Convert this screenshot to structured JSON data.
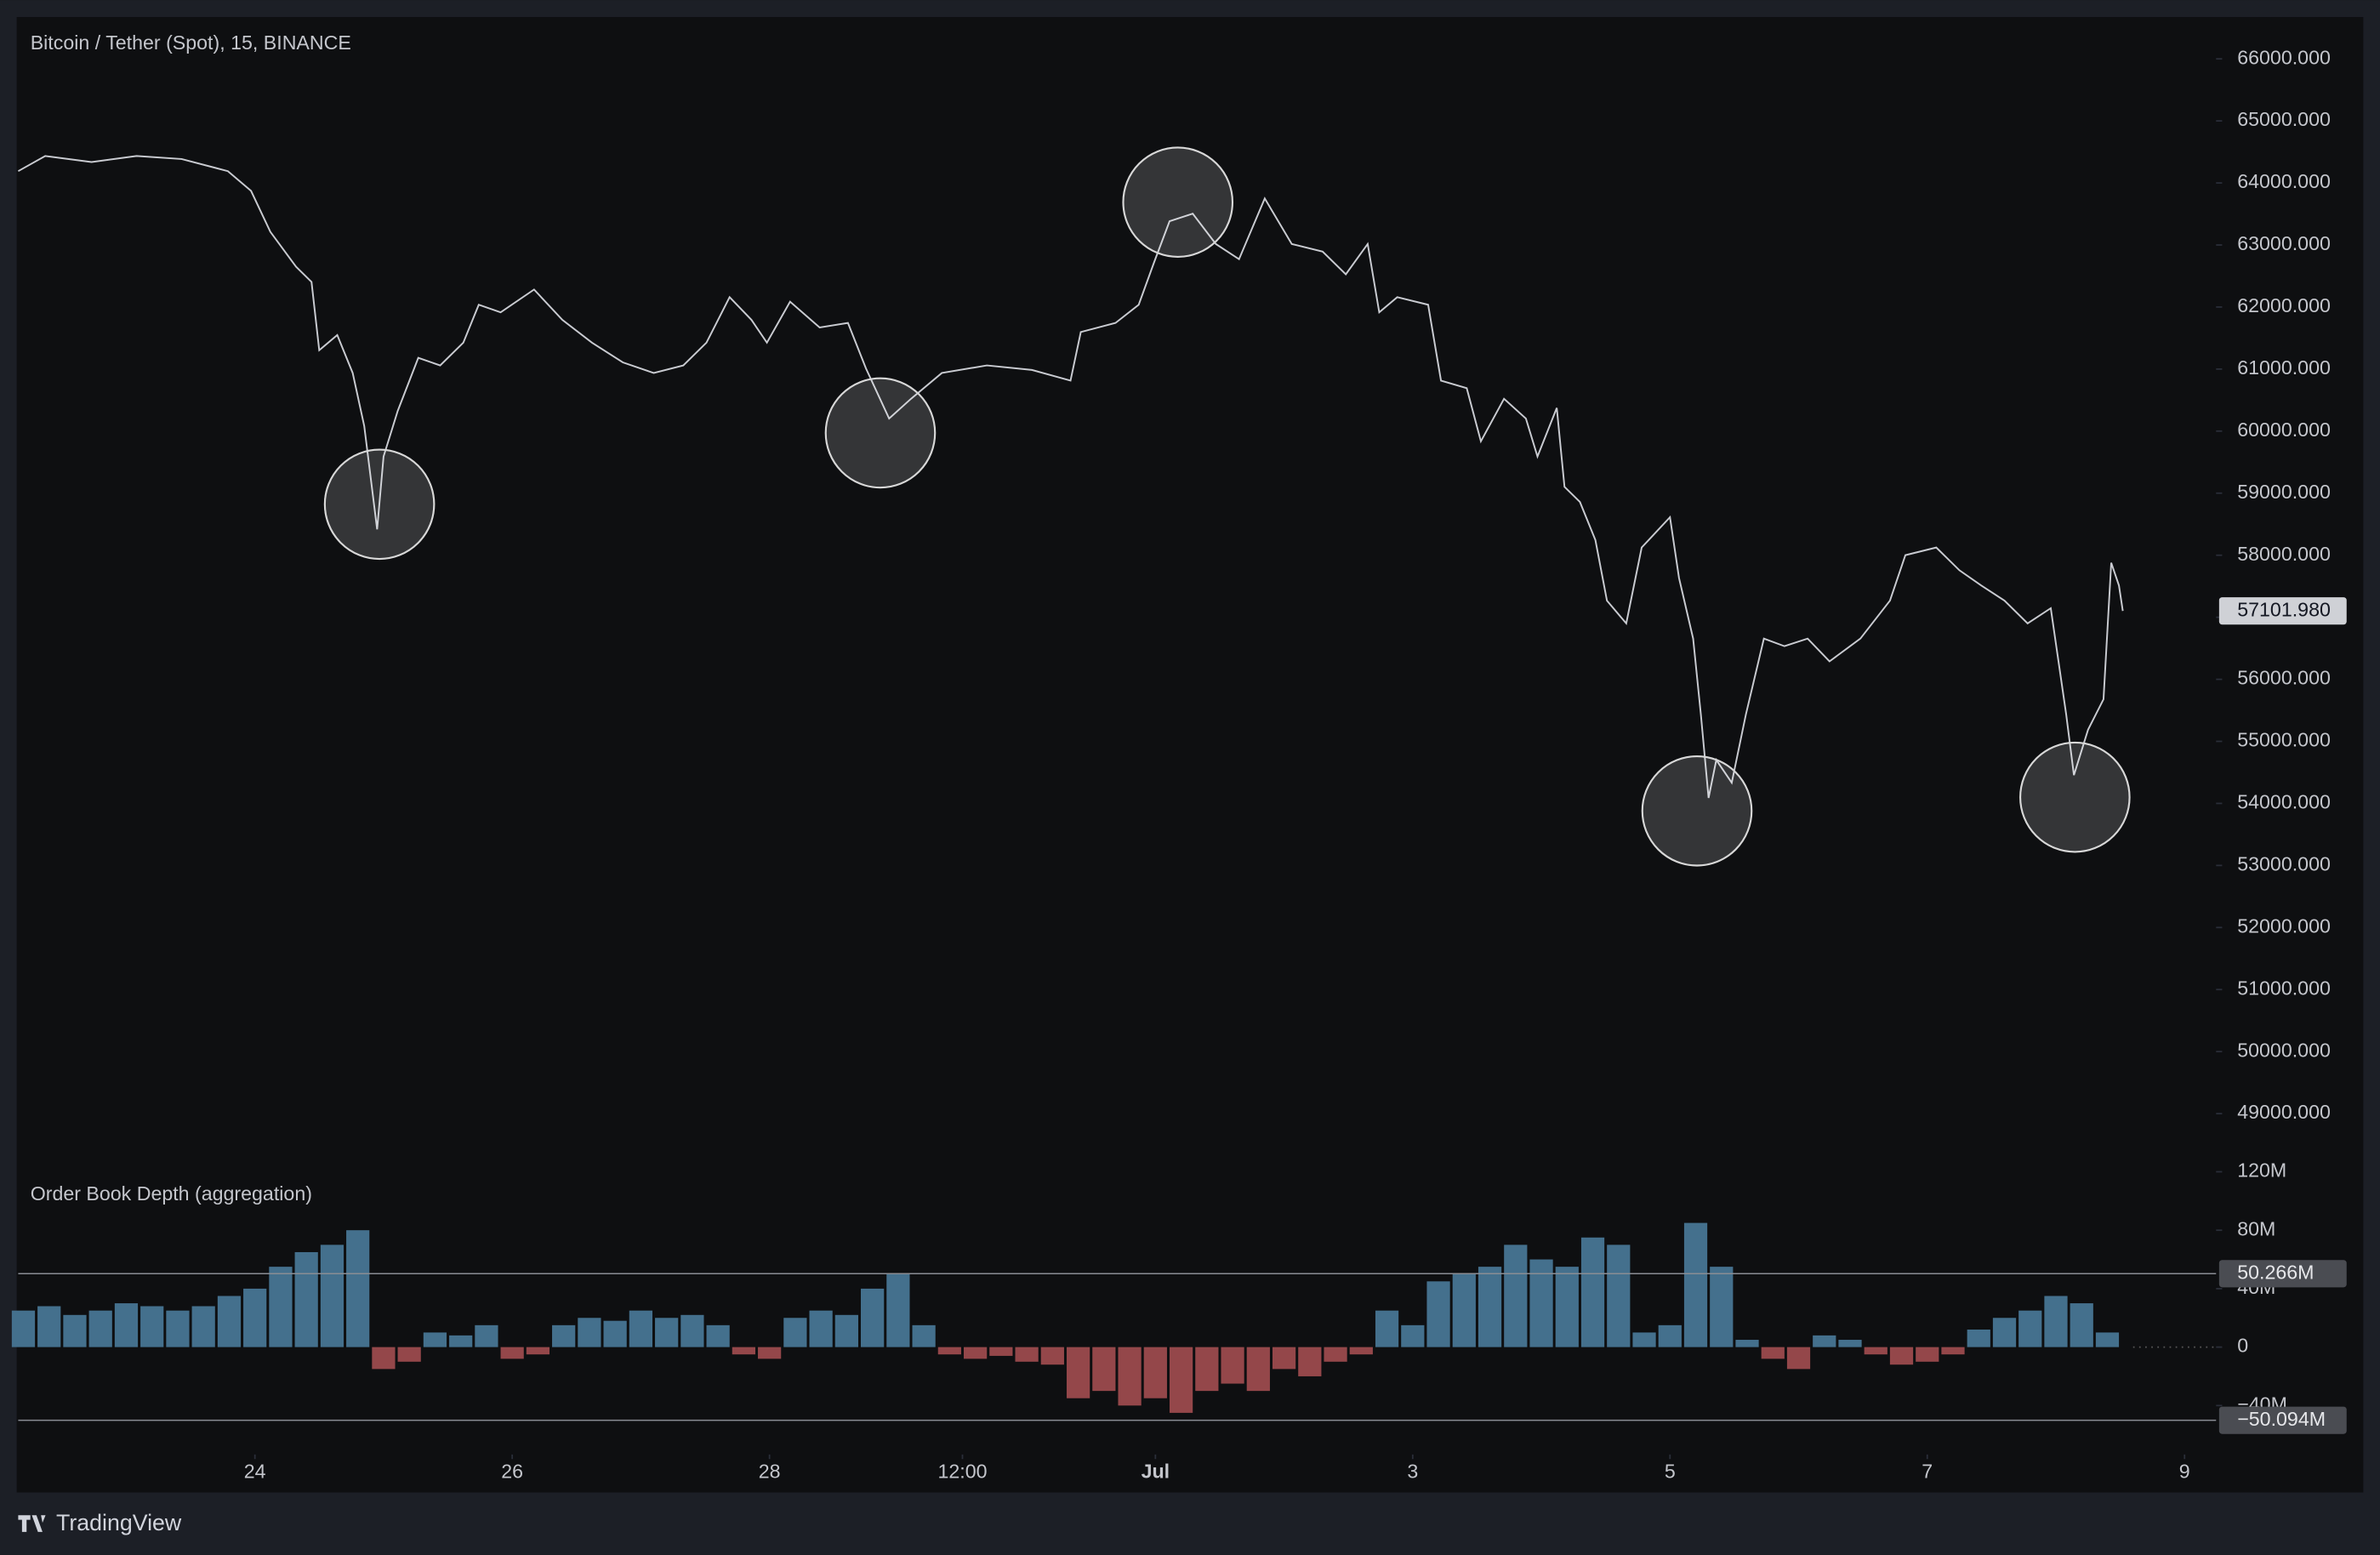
{
  "chart_data": [
    {
      "type": "line",
      "title": "Bitcoin / Tether (Spot), 15, BINANCE",
      "color": "#c9cbd1",
      "xlim": [
        22.16,
        39.245
      ],
      "xticks": [
        {
          "value": 24,
          "label": "24"
        },
        {
          "value": 26,
          "label": "26"
        },
        {
          "value": 28,
          "label": "28"
        },
        {
          "value": 29.5,
          "label": "12:00"
        },
        {
          "value": 31,
          "label": "Jul"
        },
        {
          "value": 33,
          "label": "3"
        },
        {
          "value": 35,
          "label": "5"
        },
        {
          "value": 37,
          "label": "7"
        },
        {
          "value": 39,
          "label": "9"
        }
      ],
      "ylim": [
        48350,
        66650
      ],
      "yticks": [
        {
          "value": 49000,
          "label": "49000.000"
        },
        {
          "value": 50000,
          "label": "50000.000"
        },
        {
          "value": 51000,
          "label": "51000.000"
        },
        {
          "value": 52000,
          "label": "52000.000"
        },
        {
          "value": 53000,
          "label": "53000.000"
        },
        {
          "value": 54000,
          "label": "54000.000"
        },
        {
          "value": 55000,
          "label": "55000.000"
        },
        {
          "value": 56000,
          "label": "56000.000"
        },
        {
          "value": 57000,
          "label": "57000.000"
        },
        {
          "value": 58000,
          "label": "58000.000"
        },
        {
          "value": 59000,
          "label": "59000.000"
        },
        {
          "value": 60000,
          "label": "60000.000"
        },
        {
          "value": 61000,
          "label": "61000.000"
        },
        {
          "value": 62000,
          "label": "62000.000"
        },
        {
          "value": 63000,
          "label": "63000.000"
        },
        {
          "value": 64000,
          "label": "64000.000"
        },
        {
          "value": 65000,
          "label": "65000.000"
        },
        {
          "value": 66000,
          "label": "66000.000"
        }
      ],
      "x": [
        22.16,
        22.37,
        22.73,
        23.08,
        23.43,
        23.79,
        23.97,
        24.12,
        24.32,
        24.44,
        24.5,
        24.64,
        24.76,
        24.85,
        24.95,
        25.0,
        25.11,
        25.27,
        25.44,
        25.62,
        25.74,
        25.91,
        26.17,
        26.39,
        26.62,
        26.86,
        27.1,
        27.33,
        27.51,
        27.69,
        27.86,
        27.98,
        28.16,
        28.39,
        28.61,
        28.75,
        28.93,
        29.1,
        29.34,
        29.69,
        30.04,
        30.34,
        30.42,
        30.69,
        30.87,
        30.99,
        31.11,
        31.29,
        31.47,
        31.65,
        31.85,
        32.06,
        32.3,
        32.48,
        32.65,
        32.74,
        32.88,
        33.12,
        33.22,
        33.42,
        33.53,
        33.71,
        33.88,
        33.97,
        34.12,
        34.18,
        34.3,
        34.42,
        34.51,
        34.66,
        34.78,
        34.89,
        35.0,
        35.07,
        35.18,
        35.24,
        35.3,
        35.36,
        35.48,
        35.59,
        35.73,
        35.89,
        36.07,
        36.24,
        36.48,
        36.71,
        36.83,
        37.07,
        37.25,
        37.42,
        37.6,
        37.78,
        37.96,
        38.08,
        38.14,
        38.25,
        38.37,
        38.43,
        38.49,
        38.52
      ],
      "values": [
        64190,
        64435,
        64337,
        64435,
        64386,
        64190,
        63872,
        63212,
        62649,
        62404,
        61304,
        61548,
        60937,
        60080,
        58417,
        59591,
        60325,
        61181,
        61059,
        61426,
        62037,
        61915,
        62282,
        61793,
        61426,
        61108,
        60937,
        61059,
        61426,
        62159,
        61793,
        61426,
        62086,
        61670,
        61744,
        61010,
        60203,
        60521,
        60937,
        61059,
        60986,
        60814,
        61597,
        61744,
        62037,
        62722,
        63383,
        63505,
        63016,
        62771,
        63750,
        63016,
        62893,
        62527,
        63016,
        61915,
        62159,
        62037,
        60814,
        60692,
        59836,
        60521,
        60203,
        59591,
        60374,
        59102,
        58858,
        58246,
        57268,
        56901,
        58124,
        58368,
        58613,
        57635,
        56656,
        55433,
        54088,
        54700,
        54333,
        55433,
        56656,
        56534,
        56656,
        56289,
        56656,
        57268,
        58001,
        58124,
        57757,
        57512,
        57268,
        56901,
        57146,
        55433,
        54455,
        55188,
        55678,
        57879,
        57512,
        57101.98
      ],
      "last_value_label": "57101.980"
    },
    {
      "type": "bar",
      "title": "Order Book Depth (aggregation)",
      "positive_color": "#44708d",
      "negative_color": "#94474a",
      "ylim": [
        -60,
        127
      ],
      "yticks": [
        {
          "value": -40,
          "label": "−40M"
        },
        0,
        {
          "value": 40,
          "label": "40M"
        },
        {
          "value": 80,
          "label": "80M"
        },
        {
          "value": 120,
          "label": "120M"
        }
      ],
      "levels": [
        {
          "value": 50.266,
          "label": "50.266M"
        },
        {
          "value": -50.094,
          "label": "−50.094M"
        }
      ],
      "x": [
        22.2,
        22.4,
        22.6,
        22.8,
        23.0,
        23.2,
        23.4,
        23.6,
        23.8,
        24.0,
        24.2,
        24.4,
        24.6,
        24.8,
        25.0,
        25.2,
        25.4,
        25.6,
        25.8,
        26.0,
        26.2,
        26.4,
        26.6,
        26.8,
        27.0,
        27.2,
        27.4,
        27.6,
        27.8,
        28.0,
        28.2,
        28.4,
        28.6,
        28.8,
        29.0,
        29.2,
        29.4,
        29.6,
        29.8,
        30.0,
        30.2,
        30.4,
        30.6,
        30.8,
        31.0,
        31.2,
        31.4,
        31.6,
        31.8,
        32.0,
        32.2,
        32.4,
        32.6,
        32.8,
        33.0,
        33.2,
        33.4,
        33.6,
        33.8,
        34.0,
        34.2,
        34.4,
        34.6,
        34.8,
        35.0,
        35.2,
        35.4,
        35.6,
        35.8,
        36.0,
        36.2,
        36.4,
        36.6,
        36.8,
        37.0,
        37.2,
        37.4,
        37.6,
        37.8,
        38.0,
        38.2,
        38.4
      ],
      "values": [
        25,
        28,
        22,
        25,
        30,
        28,
        25,
        28,
        35,
        40,
        55,
        65,
        70,
        80,
        -15,
        -10,
        10,
        8,
        15,
        -8,
        -5,
        15,
        20,
        18,
        25,
        20,
        22,
        15,
        -5,
        -8,
        20,
        25,
        22,
        40,
        50,
        15,
        -5,
        -8,
        -6,
        -10,
        -12,
        -35,
        -30,
        -40,
        -35,
        -45,
        -30,
        -25,
        -30,
        -15,
        -20,
        -10,
        -5,
        25,
        15,
        45,
        50,
        55,
        70,
        60,
        55,
        75,
        70,
        10,
        15,
        85,
        55,
        5,
        -8,
        -15,
        8,
        5,
        -5,
        -12,
        -10,
        -5,
        12,
        20,
        25,
        35,
        30,
        10
      ]
    },
    {
      "type": "footer",
      "brand": "TradingView"
    }
  ]
}
